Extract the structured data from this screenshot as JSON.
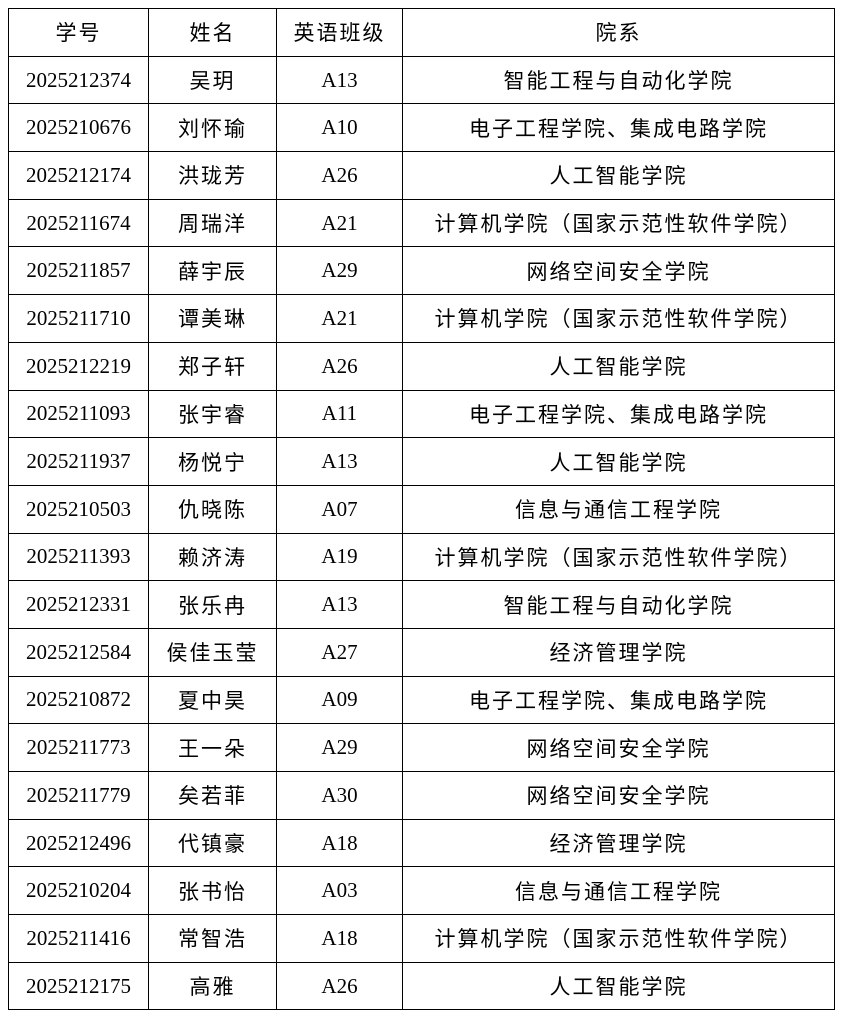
{
  "table": {
    "header": [
      "学号",
      "姓名",
      "英语班级",
      "院系"
    ],
    "rows": [
      [
        "2025212374",
        "吴玥",
        "A13",
        "智能工程与自动化学院"
      ],
      [
        "2025210676",
        "刘怀瑜",
        "A10",
        "电子工程学院、集成电路学院"
      ],
      [
        "2025212174",
        "洪珑芳",
        "A26",
        "人工智能学院"
      ],
      [
        "2025211674",
        "周瑞洋",
        "A21",
        "计算机学院（国家示范性软件学院）"
      ],
      [
        "2025211857",
        "薛宇辰",
        "A29",
        "网络空间安全学院"
      ],
      [
        "2025211710",
        "谭美琳",
        "A21",
        "计算机学院（国家示范性软件学院）"
      ],
      [
        "2025212219",
        "郑子轩",
        "A26",
        "人工智能学院"
      ],
      [
        "2025211093",
        "张宇睿",
        "A11",
        "电子工程学院、集成电路学院"
      ],
      [
        "2025211937",
        "杨悦宁",
        "A13",
        "人工智能学院"
      ],
      [
        "2025210503",
        "仇晓陈",
        "A07",
        "信息与通信工程学院"
      ],
      [
        "2025211393",
        "赖济涛",
        "A19",
        "计算机学院（国家示范性软件学院）"
      ],
      [
        "2025212331",
        "张乐冉",
        "A13",
        "智能工程与自动化学院"
      ],
      [
        "2025212584",
        "侯佳玉莹",
        "A27",
        "经济管理学院"
      ],
      [
        "2025210872",
        "夏中昊",
        "A09",
        "电子工程学院、集成电路学院"
      ],
      [
        "2025211773",
        "王一朵",
        "A29",
        "网络空间安全学院"
      ],
      [
        "2025211779",
        "矣若菲",
        "A30",
        "网络空间安全学院"
      ],
      [
        "2025212496",
        "代镇豪",
        "A18",
        "经济管理学院"
      ],
      [
        "2025210204",
        "张书怡",
        "A03",
        "信息与通信工程学院"
      ],
      [
        "2025211416",
        "常智浩",
        "A18",
        "计算机学院（国家示范性软件学院）"
      ],
      [
        "2025212175",
        "高雅",
        "A26",
        "人工智能学院"
      ]
    ]
  }
}
